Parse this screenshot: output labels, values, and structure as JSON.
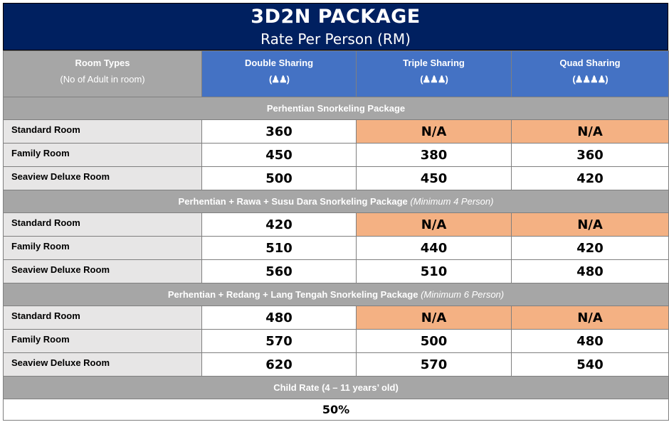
{
  "title": "3D2N PACKAGE",
  "subtitle": "Rate Per Person (RM)",
  "header": {
    "room_types": "Room Types",
    "room_types_sub": "(No of Adult in room)",
    "columns": [
      {
        "label": "Double Sharing",
        "icon": "(♟♟)"
      },
      {
        "label": "Triple Sharing",
        "icon": "(♟♟♟)"
      },
      {
        "label": "Quad Sharing",
        "icon": "(♟♟♟♟)"
      }
    ]
  },
  "sections": [
    {
      "title": "Perhentian Snorkeling Package",
      "note": "",
      "rows": [
        {
          "room": "Standard Room",
          "double": "360",
          "triple": "N/A",
          "quad": "N/A"
        },
        {
          "room": "Family Room",
          "double": "450",
          "triple": "380",
          "quad": "360"
        },
        {
          "room": "Seaview Deluxe Room",
          "double": "500",
          "triple": "450",
          "quad": "420"
        }
      ]
    },
    {
      "title": "Perhentian + Rawa + Susu Dara Snorkeling Package",
      "note": "(Minimum 4 Person)",
      "rows": [
        {
          "room": "Standard Room",
          "double": "420",
          "triple": "N/A",
          "quad": "N/A"
        },
        {
          "room": "Family Room",
          "double": "510",
          "triple": "440",
          "quad": "420"
        },
        {
          "room": "Seaview Deluxe Room",
          "double": "560",
          "triple": "510",
          "quad": "480"
        }
      ]
    },
    {
      "title": "Perhentian + Redang + Lang Tengah Snorkeling Package",
      "note": "(Minimum 6 Person)",
      "rows": [
        {
          "room": "Standard Room",
          "double": "480",
          "triple": "N/A",
          "quad": "N/A"
        },
        {
          "room": "Family Room",
          "double": "570",
          "triple": "500",
          "quad": "480"
        },
        {
          "room": "Seaview Deluxe Room",
          "double": "620",
          "triple": "570",
          "quad": "540"
        }
      ]
    }
  ],
  "child": {
    "label": "Child Rate (4 – 11 years’ old)",
    "value": "50%"
  },
  "colors": {
    "title_bg": "#002060",
    "header_blue": "#4472c4",
    "grey": "#a6a6a6",
    "room_bg": "#e7e6e6",
    "na_bg": "#f4b183"
  }
}
